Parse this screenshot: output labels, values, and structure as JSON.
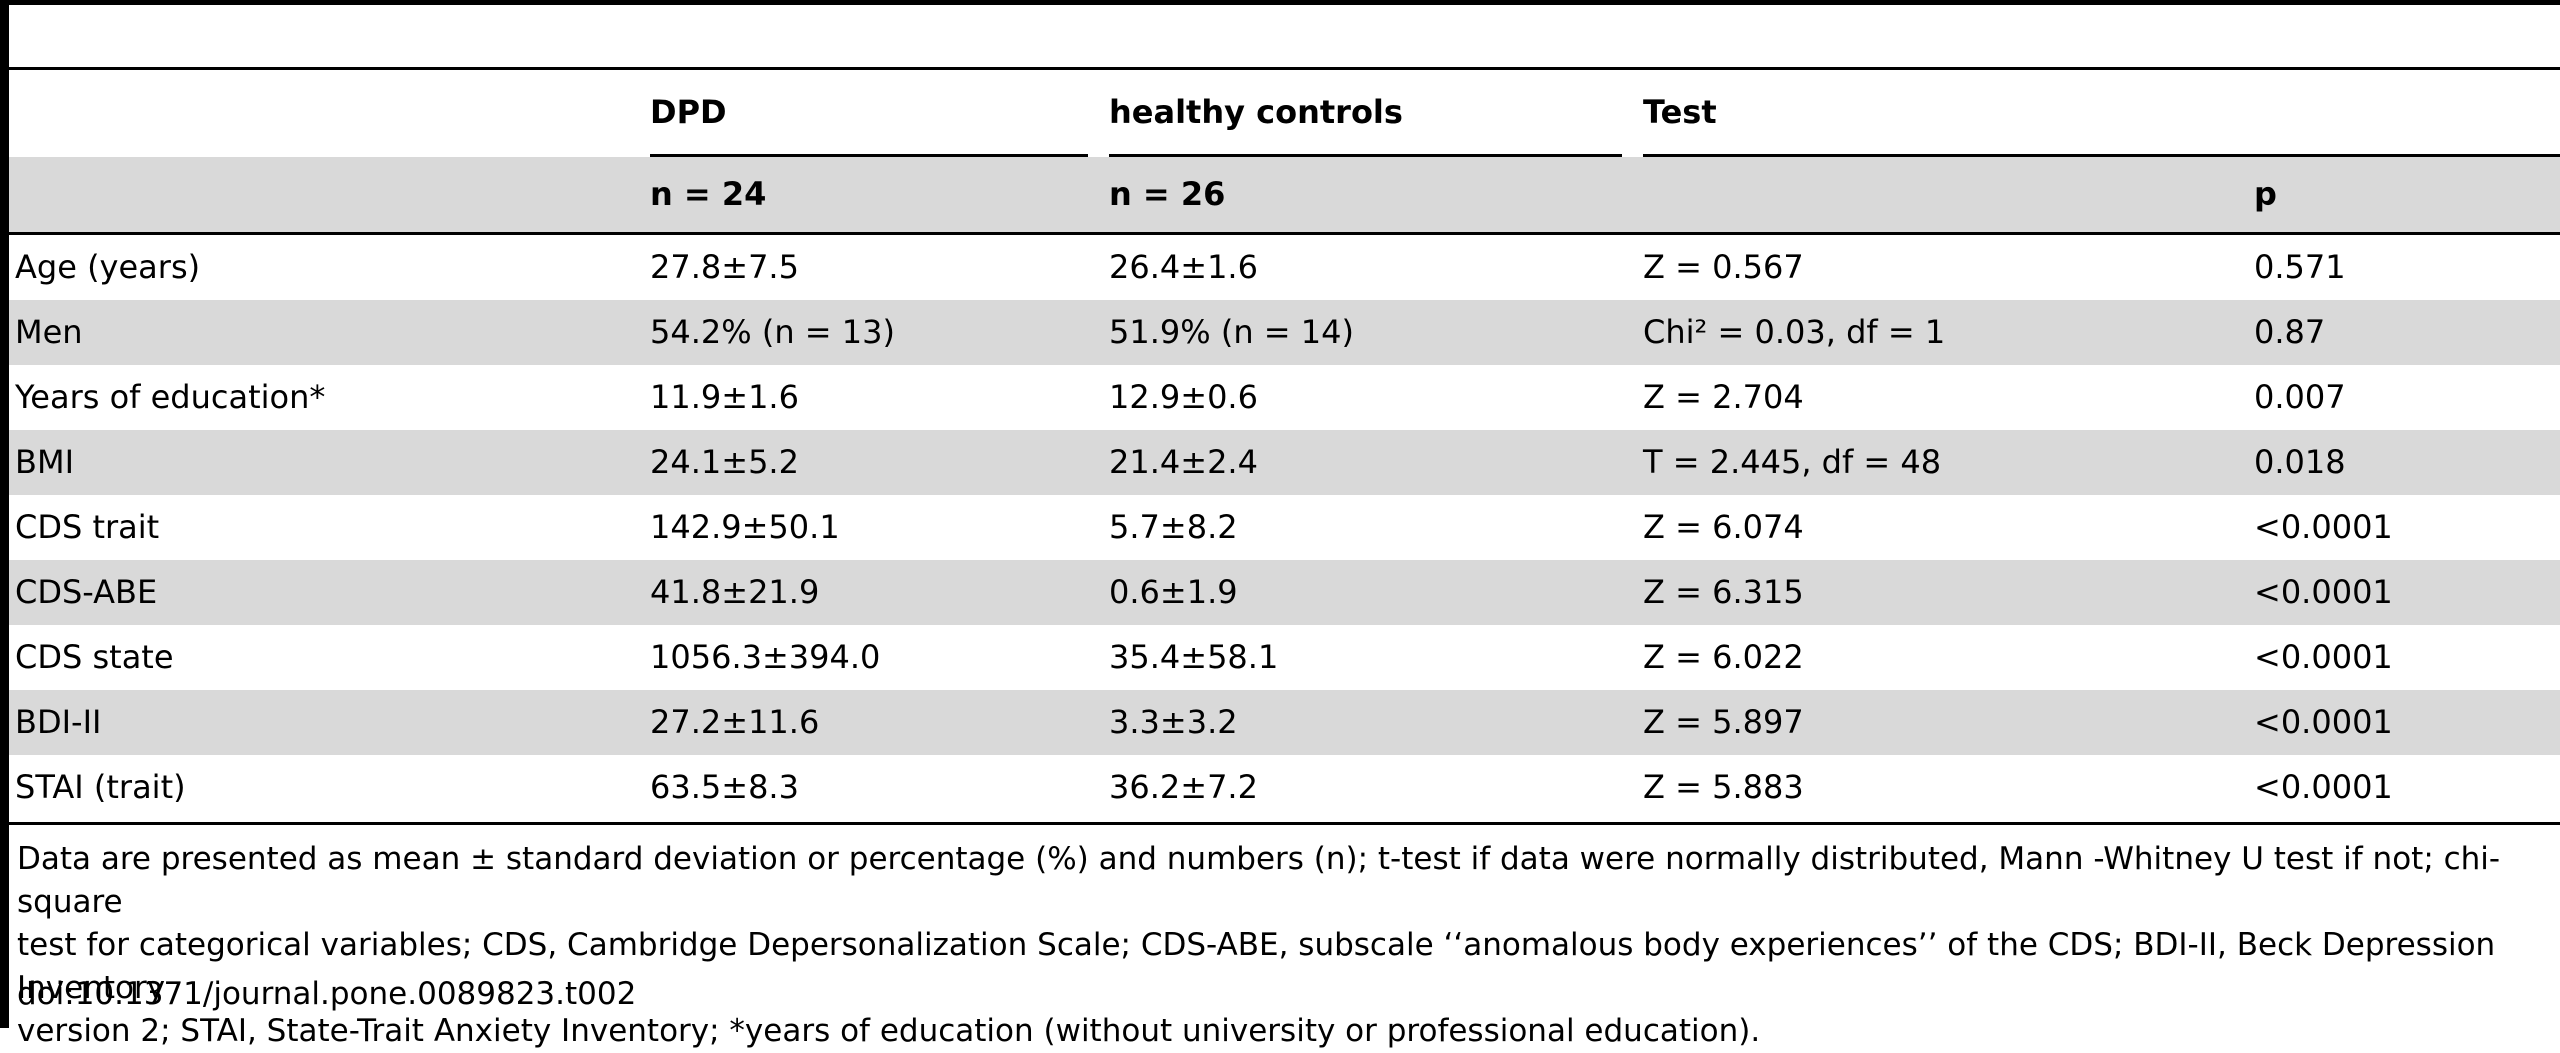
{
  "table": {
    "header": {
      "group_labels": [
        "",
        "DPD",
        "healthy controls",
        "Test",
        ""
      ],
      "n_labels": [
        "",
        "n = 24",
        "n = 26",
        "",
        "p"
      ]
    },
    "rows": [
      [
        "Age (years)",
        "27.8±7.5",
        "26.4±1.6",
        "Z = 0.567",
        "0.571"
      ],
      [
        "Men",
        "54.2% (n = 13)",
        "51.9% (n = 14)",
        "Chi² = 0.03, df  = 1",
        "0.87"
      ],
      [
        "Years of education*",
        "11.9±1.6",
        "12.9±0.6",
        "Z = 2.704",
        "0.007"
      ],
      [
        "BMI",
        "24.1±5.2",
        "21.4±2.4",
        "T = 2.445, df = 48",
        "0.018"
      ],
      [
        "CDS trait",
        "142.9±50.1",
        "5.7±8.2",
        "Z = 6.074",
        "<0.0001"
      ],
      [
        "CDS-ABE",
        "41.8±21.9",
        "0.6±1.9",
        "Z = 6.315",
        "<0.0001"
      ],
      [
        "CDS state",
        "1056.3±394.0",
        "35.4±58.1",
        "Z = 6.022",
        "<0.0001"
      ],
      [
        "BDI-II",
        "27.2±11.6",
        "3.3±3.2",
        "Z = 5.897",
        "<0.0001"
      ],
      [
        "STAI (trait)",
        "63.5±8.3",
        "36.2±7.2",
        "Z  = 5.883",
        "<0.0001"
      ]
    ]
  },
  "footnote": "Data are presented as mean ± standard deviation or percentage (%) and numbers (n); t-test if data were normally distributed, Mann -Whitney U test if not; chi-square\ntest for categorical variables; CDS, Cambridge Depersonalization Scale; CDS-ABE, subscale ‘‘anomalous body experiences’’ of the CDS; BDI-II, Beck Depression Inventory\nversion 2; STAI, State-Trait Anxiety Inventory; *years of education (without university or professional education).",
  "doi": "doi:10.1371/journal.pone.0089823.t002"
}
